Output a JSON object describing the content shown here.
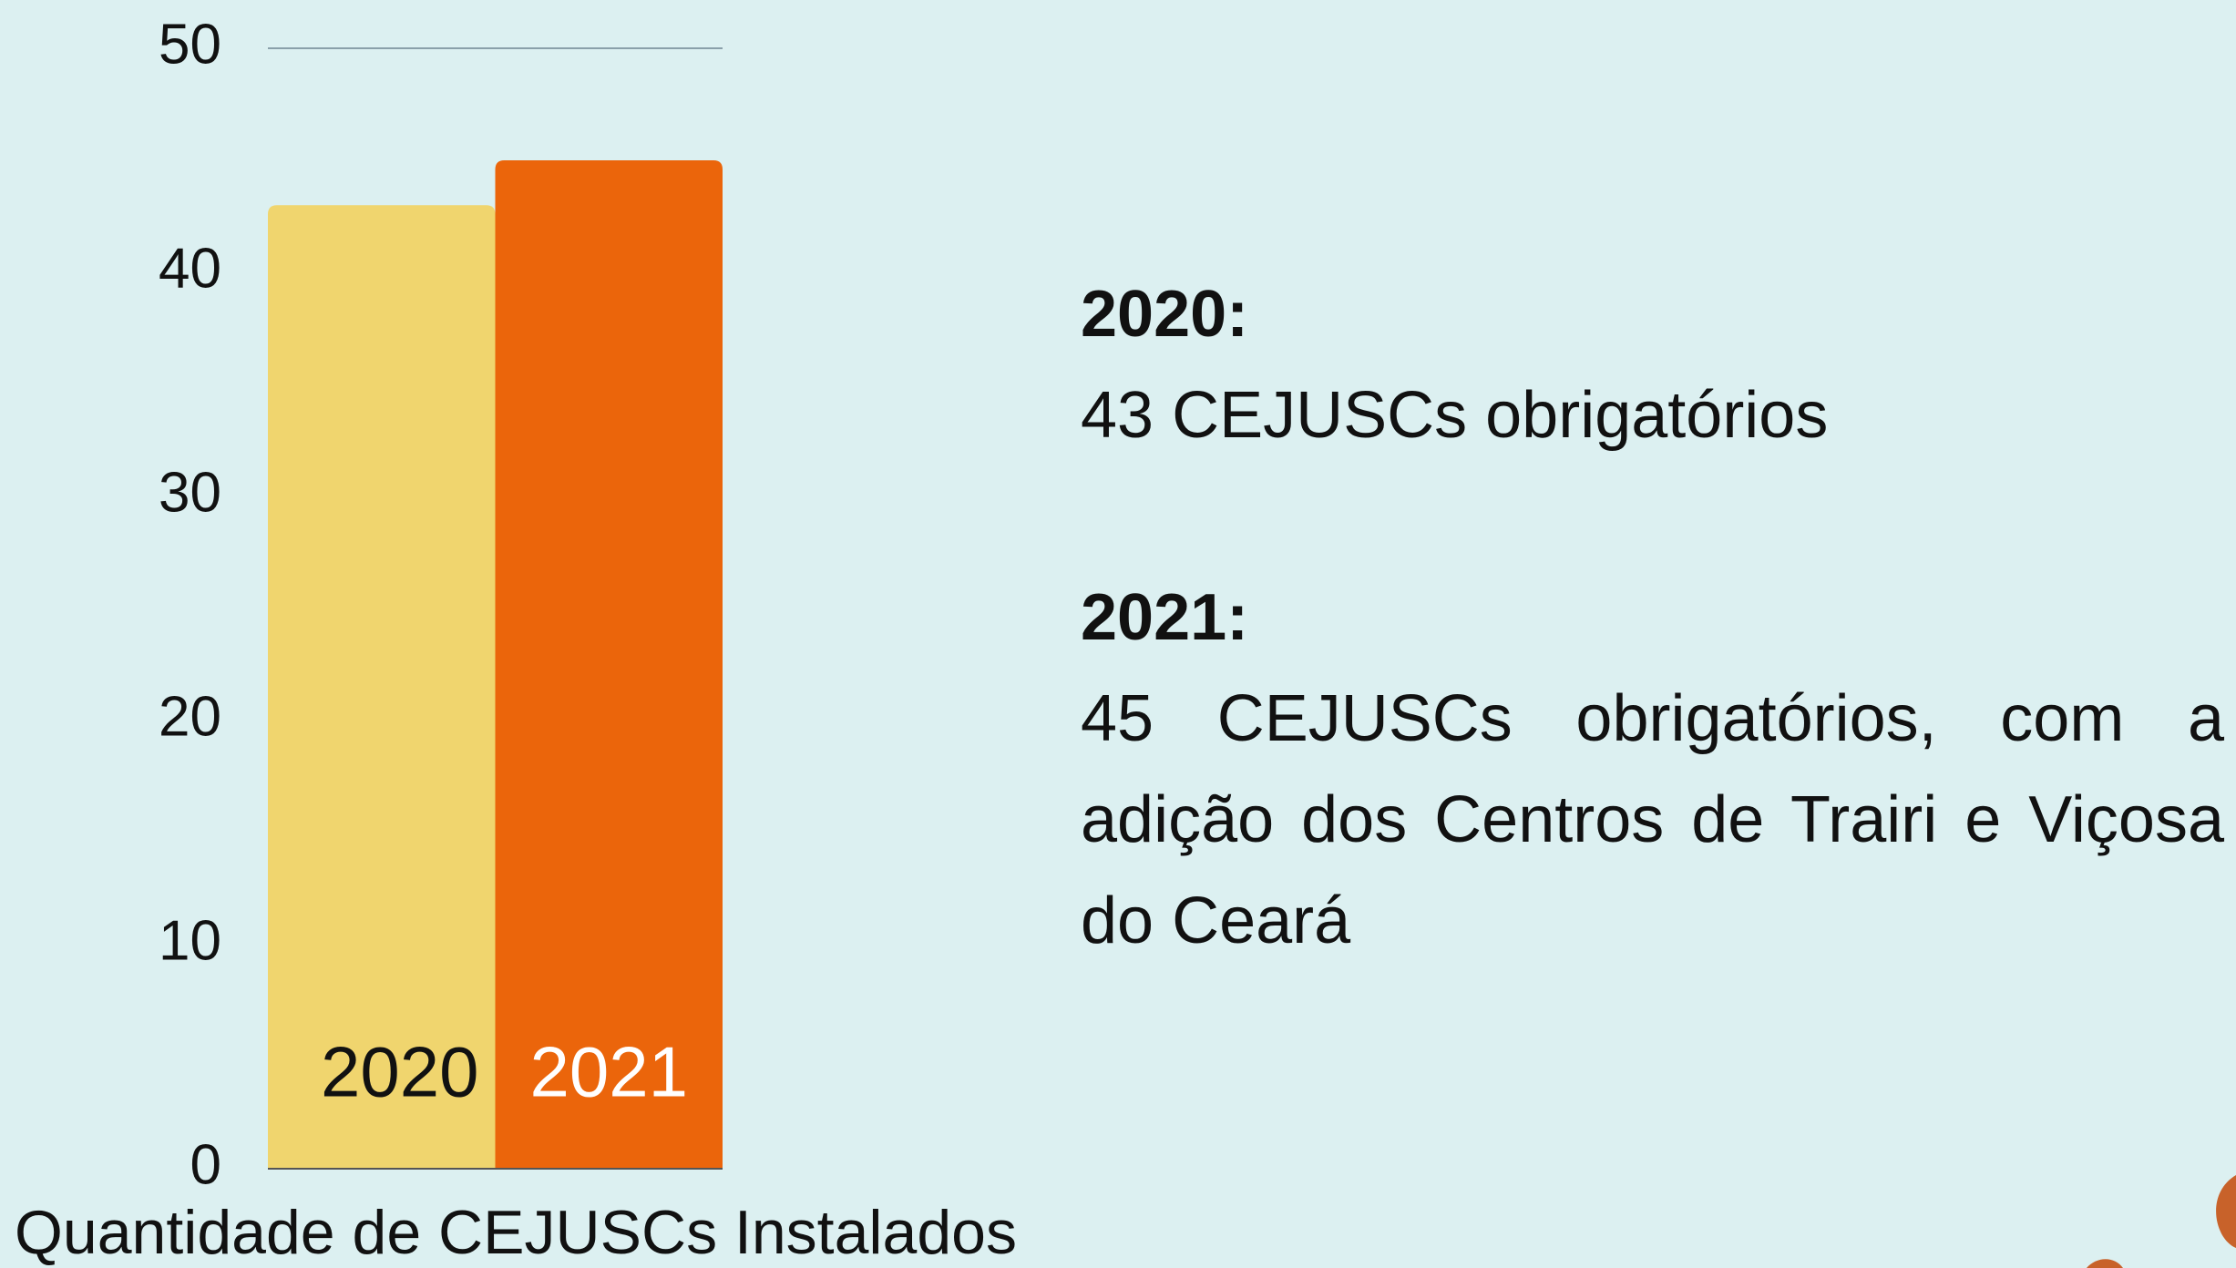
{
  "chart_data": {
    "type": "bar",
    "categories": [
      "2020",
      "2021"
    ],
    "values": [
      43,
      45
    ],
    "colors": [
      "#f0d56e",
      "#eb650b"
    ],
    "ylim": [
      0,
      50
    ],
    "yticks": [
      0,
      10,
      20,
      30,
      40,
      50
    ],
    "grid": true,
    "x_label": "Quantidade de CEJUSCs Instalados"
  },
  "notes": [
    {
      "heading": "2020:",
      "body": "43 CEJUSCs obrigatórios"
    },
    {
      "heading": "2021:",
      "body": "45 CEJUSCs obrigatórios, com a adição dos Centros de Trairi e Viçosa do Ceará"
    }
  ]
}
